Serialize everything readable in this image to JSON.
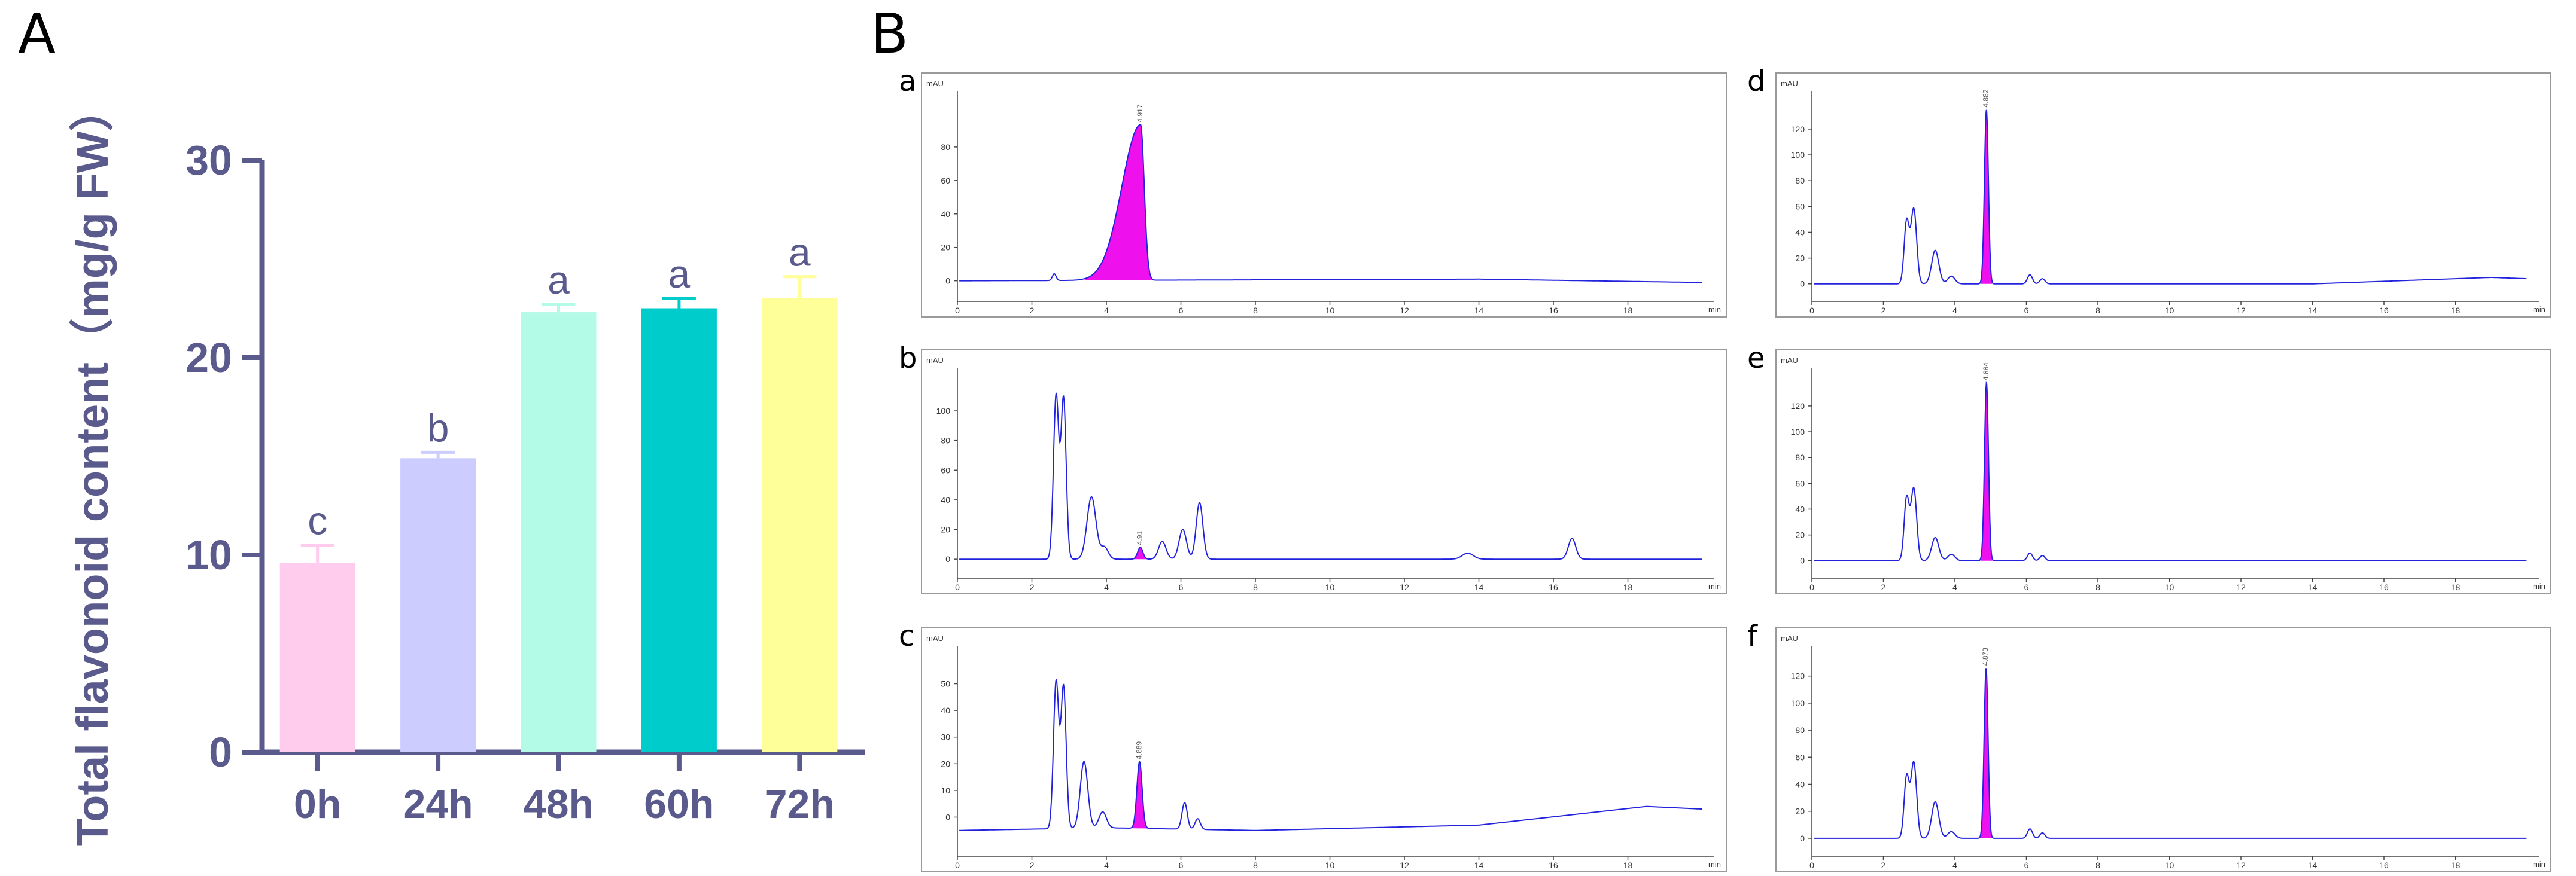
{
  "panel_labels": {
    "A": "A",
    "B": "B"
  },
  "colors": {
    "axis": "#5a5a8c",
    "trace": "#2222dd",
    "peak_fill": "#ee11ee",
    "frame": "#9a9a9a"
  },
  "chart_data": [
    {
      "id": "A",
      "type": "bar",
      "ylabel": "Total flavonoid content（mg/g FW）",
      "xlabel": "",
      "categories": [
        "0h",
        "24h",
        "48h",
        "60h",
        "72h"
      ],
      "values": [
        9.6,
        14.9,
        22.3,
        22.5,
        23.0
      ],
      "errors": [
        0.9,
        0.3,
        0.4,
        0.5,
        1.1
      ],
      "significance": [
        "c",
        "b",
        "a",
        "a",
        "a"
      ],
      "bar_colors": [
        "#ffccee",
        "#ccccff",
        "#b3fbe6",
        "#00cccc",
        "#ffff99"
      ],
      "ylim": [
        0,
        30
      ],
      "yticks": [
        0,
        10,
        20,
        30
      ]
    },
    {
      "id": "a",
      "type": "line",
      "y_unit": "mAU",
      "x_unit": "min",
      "xlim": [
        0,
        20
      ],
      "ylim": [
        -8,
        110
      ],
      "yticks": [
        0,
        20,
        40,
        60,
        80
      ],
      "xticks": [
        0,
        2,
        4,
        6,
        8,
        10,
        12,
        14,
        16,
        18
      ],
      "peak_label": "4.917",
      "peak_rt": 4.917,
      "baseline": 0,
      "peaks": [
        {
          "rt": 2.6,
          "h": 4,
          "w": 0.05
        },
        {
          "rt": 4.917,
          "h": 93,
          "w": 0.1,
          "tail": 0.5,
          "filled": true
        }
      ],
      "drift": [
        {
          "x": 0,
          "y": 0
        },
        {
          "x": 14,
          "y": 1
        },
        {
          "x": 20,
          "y": -1
        }
      ]
    },
    {
      "id": "b",
      "type": "line",
      "y_unit": "mAU",
      "x_unit": "min",
      "xlim": [
        0,
        20
      ],
      "ylim": [
        -8,
        125
      ],
      "yticks": [
        0,
        20,
        40,
        60,
        80,
        100
      ],
      "xticks": [
        0,
        2,
        4,
        6,
        8,
        10,
        12,
        14,
        16,
        18
      ],
      "peak_label": "4.91",
      "peak_rt": 4.91,
      "baseline": 0,
      "peaks": [
        {
          "rt": 2.65,
          "h": 110,
          "w": 0.07
        },
        {
          "rt": 2.85,
          "h": 108,
          "w": 0.07
        },
        {
          "rt": 3.6,
          "h": 42,
          "w": 0.12
        },
        {
          "rt": 3.95,
          "h": 8,
          "w": 0.1
        },
        {
          "rt": 4.91,
          "h": 8,
          "w": 0.07,
          "filled": true
        },
        {
          "rt": 5.5,
          "h": 12,
          "w": 0.1
        },
        {
          "rt": 6.05,
          "h": 20,
          "w": 0.1
        },
        {
          "rt": 6.5,
          "h": 38,
          "w": 0.09
        },
        {
          "rt": 13.7,
          "h": 4,
          "w": 0.15
        },
        {
          "rt": 16.5,
          "h": 14,
          "w": 0.1
        }
      ],
      "drift": [
        {
          "x": 0,
          "y": 0
        },
        {
          "x": 20,
          "y": 0
        }
      ]
    },
    {
      "id": "c",
      "type": "line",
      "y_unit": "mAU",
      "x_unit": "min",
      "xlim": [
        0,
        20
      ],
      "ylim": [
        -12,
        62
      ],
      "yticks": [
        0,
        10,
        20,
        30,
        40,
        50
      ],
      "xticks": [
        0,
        2,
        4,
        6,
        8,
        10,
        12,
        14,
        16,
        18
      ],
      "peak_label": "4.889",
      "peak_rt": 4.889,
      "baseline": -5,
      "peaks": [
        {
          "rt": 2.65,
          "h": 55,
          "w": 0.07
        },
        {
          "rt": 2.85,
          "h": 53,
          "w": 0.07
        },
        {
          "rt": 3.4,
          "h": 25,
          "w": 0.1
        },
        {
          "rt": 3.9,
          "h": 6,
          "w": 0.1
        },
        {
          "rt": 4.889,
          "h": 25,
          "w": 0.07,
          "filled": true
        },
        {
          "rt": 6.1,
          "h": 10,
          "w": 0.07
        },
        {
          "rt": 6.45,
          "h": 4,
          "w": 0.07
        }
      ],
      "drift": [
        {
          "x": 0,
          "y": -5
        },
        {
          "x": 4,
          "y": -4
        },
        {
          "x": 8,
          "y": -5
        },
        {
          "x": 14,
          "y": -3
        },
        {
          "x": 18.5,
          "y": 4
        },
        {
          "x": 20,
          "y": 3
        }
      ]
    },
    {
      "id": "d",
      "type": "line",
      "y_unit": "mAU",
      "x_unit": "min",
      "xlim": [
        0,
        20
      ],
      "ylim": [
        -8,
        145
      ],
      "yticks": [
        0,
        20,
        40,
        60,
        80,
        100,
        120
      ],
      "xticks": [
        0,
        2,
        4,
        6,
        8,
        10,
        12,
        14,
        16,
        18
      ],
      "peak_label": "4.882",
      "peak_rt": 4.882,
      "baseline": 0,
      "peaks": [
        {
          "rt": 2.65,
          "h": 48,
          "w": 0.07
        },
        {
          "rt": 2.85,
          "h": 58,
          "w": 0.08
        },
        {
          "rt": 3.45,
          "h": 26,
          "w": 0.1
        },
        {
          "rt": 3.9,
          "h": 6,
          "w": 0.1
        },
        {
          "rt": 4.882,
          "h": 135,
          "w": 0.055,
          "filled": true
        },
        {
          "rt": 6.1,
          "h": 7,
          "w": 0.07
        },
        {
          "rt": 6.45,
          "h": 4,
          "w": 0.07
        }
      ],
      "drift": [
        {
          "x": 0,
          "y": 0
        },
        {
          "x": 14,
          "y": 0
        },
        {
          "x": 19,
          "y": 5
        },
        {
          "x": 20,
          "y": 4
        }
      ]
    },
    {
      "id": "e",
      "type": "line",
      "y_unit": "mAU",
      "x_unit": "min",
      "xlim": [
        0,
        20
      ],
      "ylim": [
        -8,
        145
      ],
      "yticks": [
        0,
        20,
        40,
        60,
        80,
        100,
        120
      ],
      "xticks": [
        0,
        2,
        4,
        6,
        8,
        10,
        12,
        14,
        16,
        18
      ],
      "peak_label": "4.884",
      "peak_rt": 4.884,
      "baseline": 0,
      "peaks": [
        {
          "rt": 2.65,
          "h": 48,
          "w": 0.07
        },
        {
          "rt": 2.85,
          "h": 56,
          "w": 0.08
        },
        {
          "rt": 3.45,
          "h": 18,
          "w": 0.1
        },
        {
          "rt": 3.9,
          "h": 5,
          "w": 0.1
        },
        {
          "rt": 4.884,
          "h": 138,
          "w": 0.055,
          "filled": true
        },
        {
          "rt": 6.1,
          "h": 6,
          "w": 0.07
        },
        {
          "rt": 6.45,
          "h": 4,
          "w": 0.07
        }
      ],
      "drift": [
        {
          "x": 0,
          "y": 0
        },
        {
          "x": 20,
          "y": 0
        }
      ]
    },
    {
      "id": "f",
      "type": "line",
      "y_unit": "mAU",
      "x_unit": "min",
      "xlim": [
        0,
        20
      ],
      "ylim": [
        -8,
        138
      ],
      "yticks": [
        0,
        20,
        40,
        60,
        80,
        100,
        120
      ],
      "xticks": [
        0,
        2,
        4,
        6,
        8,
        10,
        12,
        14,
        16,
        18
      ],
      "peak_label": "4.873",
      "peak_rt": 4.873,
      "baseline": 0,
      "peaks": [
        {
          "rt": 2.65,
          "h": 45,
          "w": 0.07
        },
        {
          "rt": 2.85,
          "h": 56,
          "w": 0.08
        },
        {
          "rt": 3.45,
          "h": 27,
          "w": 0.1
        },
        {
          "rt": 3.9,
          "h": 5,
          "w": 0.1
        },
        {
          "rt": 4.873,
          "h": 126,
          "w": 0.055,
          "filled": true
        },
        {
          "rt": 6.1,
          "h": 7,
          "w": 0.07
        },
        {
          "rt": 6.45,
          "h": 4,
          "w": 0.07
        }
      ],
      "drift": [
        {
          "x": 0,
          "y": 0
        },
        {
          "x": 20,
          "y": 0
        }
      ]
    }
  ]
}
